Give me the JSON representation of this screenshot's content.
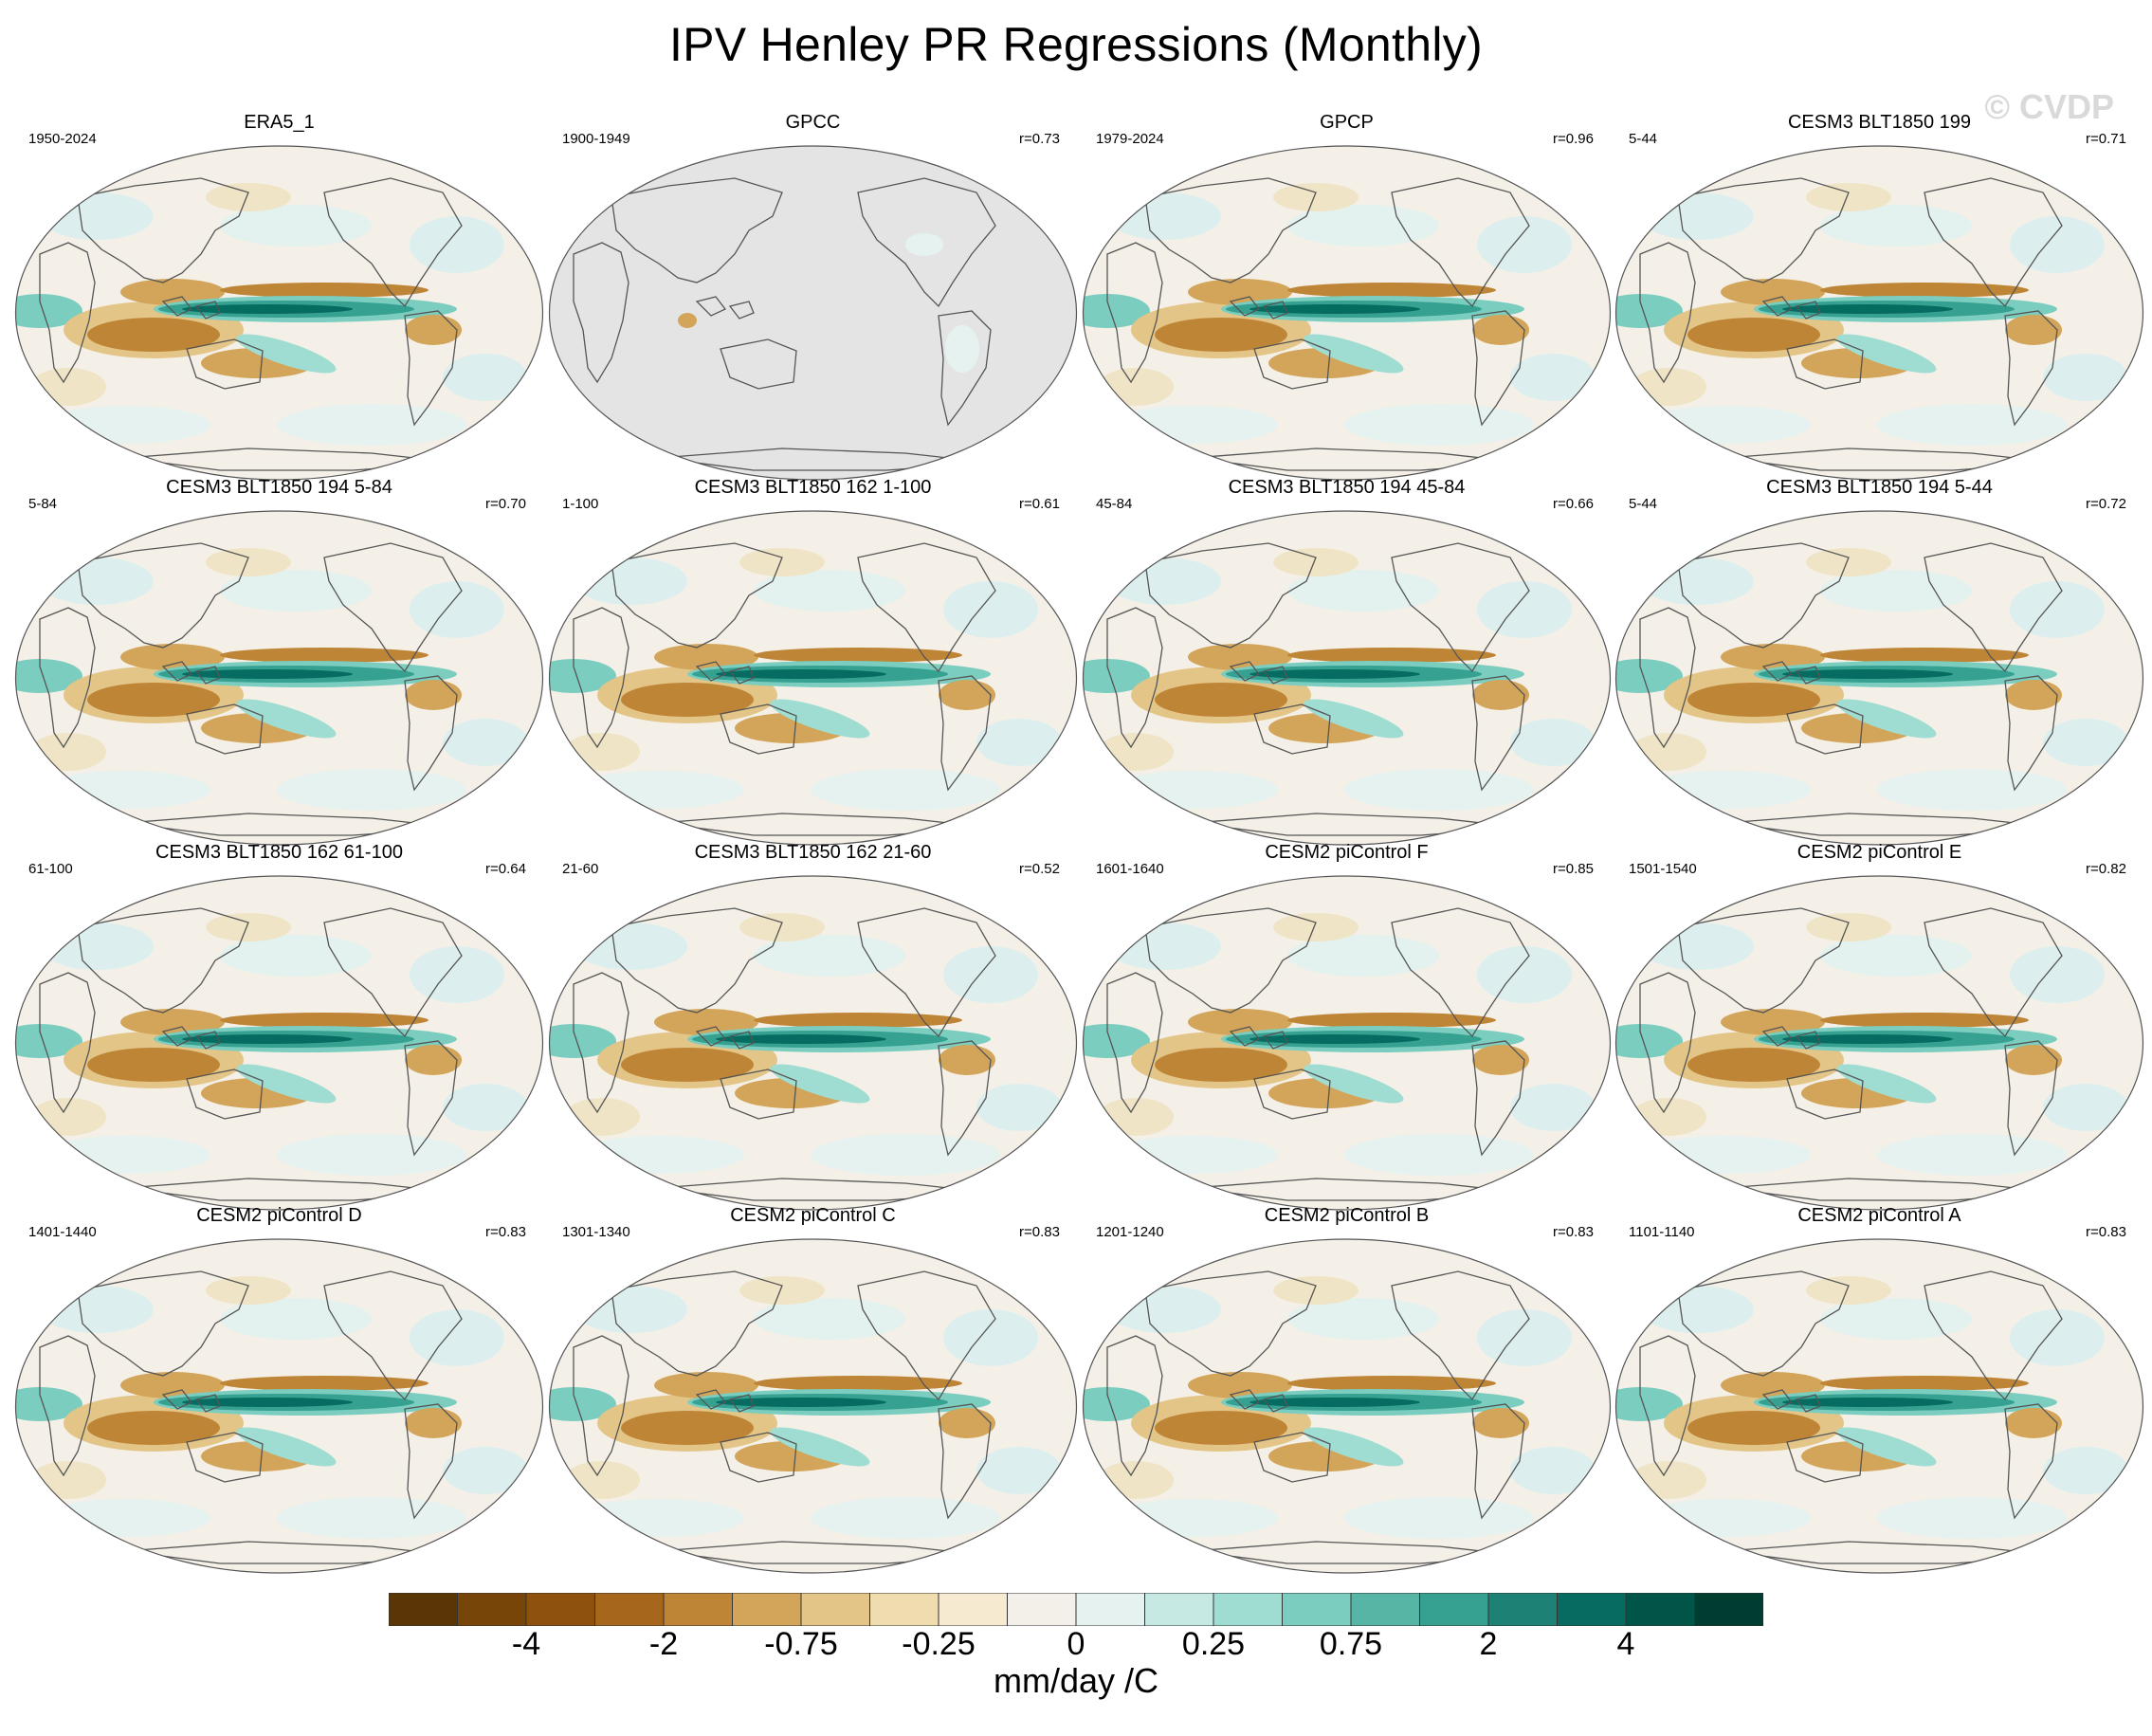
{
  "title": "IPV Henley PR Regressions (Monthly)",
  "watermark": "© CVDP",
  "chart_data": {
    "type": "heatmap",
    "title": "IPV Henley PR Regressions (Monthly)",
    "projection": "Robinson, Pacific-centered global maps",
    "panels": [
      {
        "title": "ERA5_1",
        "period": "1950-2024",
        "r": ""
      },
      {
        "title": "GPCC",
        "period": "1900-1949",
        "r": "r=0.73"
      },
      {
        "title": "GPCP",
        "period": "1979-2024",
        "r": "r=0.96"
      },
      {
        "title": "CESM3 BLT1850 199",
        "period": "5-44",
        "r": "r=0.71"
      },
      {
        "title": "CESM3 BLT1850 194 5-84",
        "period": "5-84",
        "r": "r=0.70"
      },
      {
        "title": "CESM3 BLT1850 162 1-100",
        "period": "1-100",
        "r": "r=0.61"
      },
      {
        "title": "CESM3 BLT1850 194 45-84",
        "period": "45-84",
        "r": "r=0.66"
      },
      {
        "title": "CESM3 BLT1850 194 5-44",
        "period": "5-44",
        "r": "r=0.72"
      },
      {
        "title": "CESM3 BLT1850 162 61-100",
        "period": "61-100",
        "r": "r=0.64"
      },
      {
        "title": "CESM3 BLT1850 162 21-60",
        "period": "21-60",
        "r": "r=0.52"
      },
      {
        "title": "CESM2 piControl F",
        "period": "1601-1640",
        "r": "r=0.85"
      },
      {
        "title": "CESM2 piControl E",
        "period": "1501-1540",
        "r": "r=0.82"
      },
      {
        "title": "CESM2 piControl D",
        "period": "1401-1440",
        "r": "r=0.83"
      },
      {
        "title": "CESM2 piControl C",
        "period": "1301-1340",
        "r": "r=0.83"
      },
      {
        "title": "CESM2 piControl B",
        "period": "1201-1240",
        "r": "r=0.83"
      },
      {
        "title": "CESM2 piControl A",
        "period": "1101-1140",
        "r": "r=0.83"
      }
    ],
    "colorbar": {
      "units": "mm/day /C",
      "tick_labels": [
        "-4",
        "-2",
        "-0.75",
        "-0.25",
        "0",
        "0.25",
        "0.75",
        "2",
        "4"
      ],
      "colors": [
        "#5a3505",
        "#784509",
        "#8f520e",
        "#a6671d",
        "#bf8537",
        "#d2a55a",
        "#e3c587",
        "#efdcaf",
        "#f6ebd0",
        "#f3f0ea",
        "#e6f2f0",
        "#c7e9e3",
        "#9fdcd1",
        "#7bcdbf",
        "#56b5a5",
        "#36a091",
        "#1d8275",
        "#066b60",
        "#015548",
        "#003c30"
      ]
    }
  }
}
